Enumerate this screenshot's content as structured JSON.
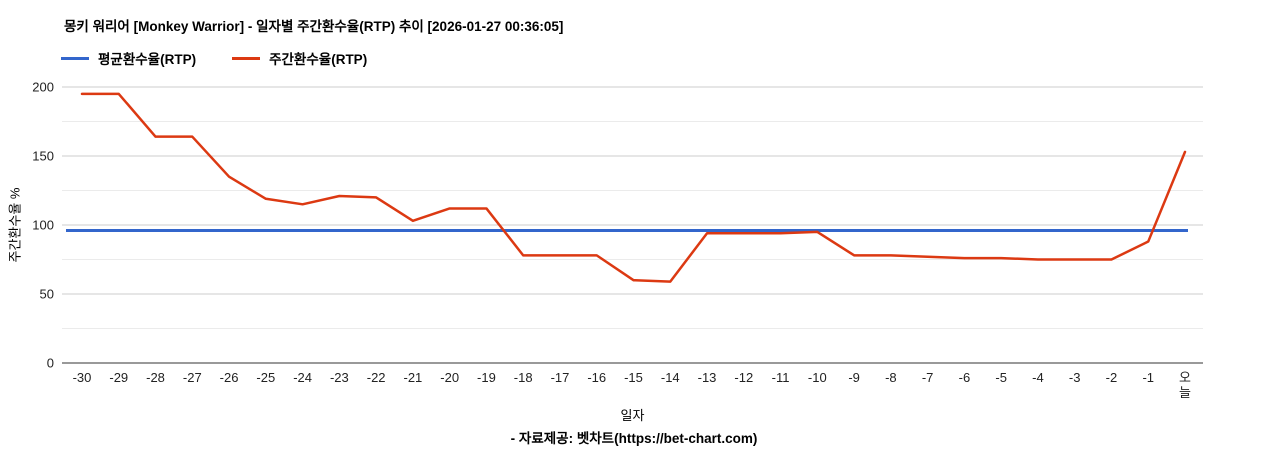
{
  "header": {
    "title": "몽키 워리어 [Monkey Warrior] - 일자별 주간환수율(RTP) 추이 [2026-01-27 00:36:05]"
  },
  "legend": {
    "items": [
      {
        "label": "평균환수율(RTP)",
        "color": "#3366cc"
      },
      {
        "label": "주간환수율(RTP)",
        "color": "#dc3912"
      }
    ]
  },
  "axes": {
    "x_title": "일자",
    "y_title": "주간환수율 %"
  },
  "footer": {
    "source": "- 자료제공: 벳차트(https://bet-chart.com)"
  },
  "chart_data": {
    "type": "line",
    "title": "몽키 워리어 [Monkey Warrior] - 일자별 주간환수율(RTP) 추이 [2026-01-27 00:36:05]",
    "xlabel": "일자",
    "ylabel": "주간환수율 %",
    "ylim": [
      0,
      200
    ],
    "yticks": [
      0,
      50,
      100,
      150,
      200
    ],
    "y_minor_ticks": [
      25,
      75,
      125,
      175
    ],
    "grid": true,
    "legend_position": "top-left",
    "categories": [
      "-30",
      "-29",
      "-28",
      "-27",
      "-26",
      "-25",
      "-24",
      "-23",
      "-22",
      "-21",
      "-20",
      "-19",
      "-18",
      "-17",
      "-16",
      "-15",
      "-14",
      "-13",
      "-12",
      "-11",
      "-10",
      "-9",
      "-8",
      "-7",
      "-6",
      "-5",
      "-4",
      "-3",
      "-2",
      "-1",
      "오늘"
    ],
    "series": [
      {
        "name": "평균환수율(RTP)",
        "type": "constant",
        "value": 96,
        "color": "#3366cc"
      },
      {
        "name": "주간환수율(RTP)",
        "type": "line",
        "color": "#dc3912",
        "values": [
          195,
          195,
          164,
          164,
          135,
          119,
          115,
          121,
          120,
          103,
          112,
          112,
          78,
          78,
          78,
          60,
          59,
          94,
          94,
          94,
          95,
          78,
          78,
          77,
          76,
          76,
          75,
          75,
          75,
          88,
          153
        ]
      }
    ],
    "style": {
      "major_grid_color": "#cccccc",
      "minor_grid_color": "#ebebeb",
      "axis_line_color": "#333333",
      "tick_label_color": "#222222"
    }
  }
}
